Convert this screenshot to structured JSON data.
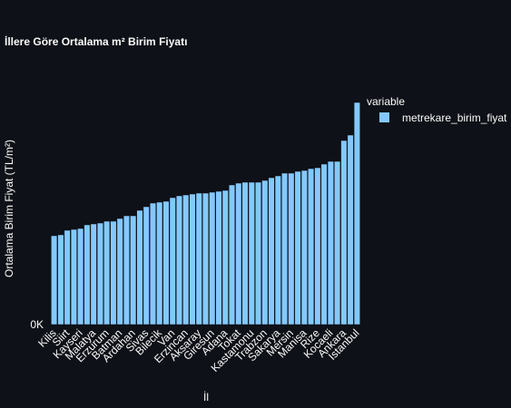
{
  "chart_data": {
    "type": "bar",
    "title": "İllere Göre Ortalama m² Birim Fiyatı",
    "x_label": "İl",
    "y_label": "Ortalama Birim Fiyat (TL/m²)",
    "legend_title": "variable",
    "series": [
      {
        "name": "metrekare_birim_fiyat",
        "color": "#83c9ff",
        "values": [
          9800,
          9900,
          10400,
          10500,
          10600,
          11000,
          11100,
          11200,
          11400,
          11400,
          11700,
          12000,
          12000,
          12600,
          13000,
          13400,
          13500,
          13600,
          14000,
          14200,
          14300,
          14400,
          14500,
          14500,
          14600,
          14700,
          14800,
          15400,
          15600,
          15700,
          15700,
          15700,
          15900,
          16200,
          16400,
          16700,
          16700,
          16900,
          17000,
          17200,
          17300,
          17700,
          18000,
          18000,
          20300,
          20900,
          24500
        ]
      }
    ],
    "categories": [
      "Kilis",
      null,
      "Siirt",
      null,
      "Kayseri",
      null,
      "Malatya",
      null,
      "Erzurum",
      null,
      "Batman",
      null,
      "Ardahan",
      null,
      "Sivas",
      null,
      "Bilecik",
      null,
      "Van",
      null,
      "Erzincan",
      null,
      "Aksaray",
      null,
      "Giresun",
      null,
      "Adana",
      null,
      "Tokat",
      null,
      "Kastamonu",
      null,
      "Trabzon",
      null,
      "Sakarya",
      null,
      "Mersin",
      null,
      "Manisa",
      null,
      "Rize",
      null,
      "Kocaeli",
      null,
      "Ankara",
      null,
      "İstanbul"
    ],
    "ylim": [
      0,
      25800
    ],
    "yticks": [
      {
        "value": 0,
        "label": "0K"
      }
    ],
    "legend_position": "right"
  }
}
